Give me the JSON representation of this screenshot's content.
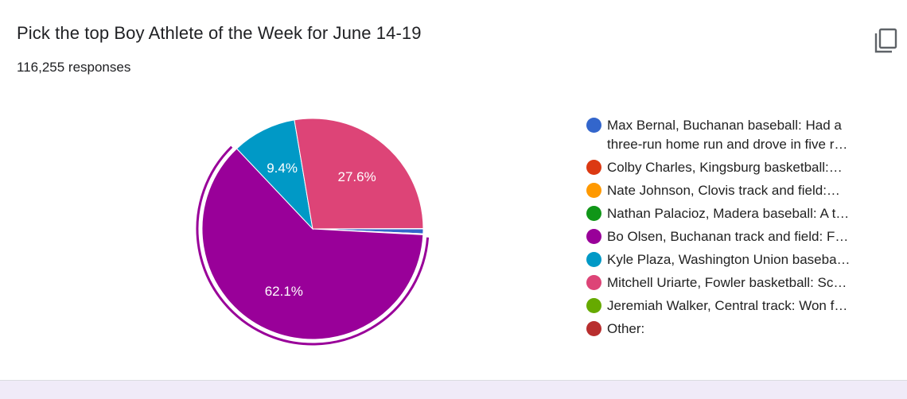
{
  "question": {
    "title": "Pick the top Boy Athlete of the Week for June 14-19",
    "responses": "116,255 responses"
  },
  "icons": {
    "copy": "copy-icon"
  },
  "chart_data": {
    "type": "pie",
    "highlighted": "Bo Olsen, Buchanan track and field: F…",
    "labels": [
      "Max Bernal, Buchanan baseball: Had a three-run home run and drove in five r…",
      "Colby Charles, Kingsburg basketball:…",
      "Nate Johnson, Clovis track and field:…",
      "Nathan Palacioz, Madera baseball: A t…",
      "Bo Olsen, Buchanan track and field: F…",
      "Kyle Plaza, Washington Union baseba…",
      "Mitchell Uriarte, Fowler basketball: Sc…",
      "Jeremiah Walker, Central track: Won f…",
      "Other:"
    ],
    "values": [
      0.7,
      0.05,
      0.05,
      0.05,
      62.1,
      9.4,
      27.6,
      0.05,
      0.0
    ],
    "data_labels": [
      "",
      "",
      "",
      "",
      "62.1%",
      "9.4%",
      "27.6%",
      "",
      ""
    ],
    "colors": [
      "#3366cc",
      "#dc3912",
      "#ff9900",
      "#109618",
      "#990099",
      "#0099c6",
      "#dd4477",
      "#66aa00",
      "#b82e2e"
    ],
    "legend_position": "right"
  }
}
